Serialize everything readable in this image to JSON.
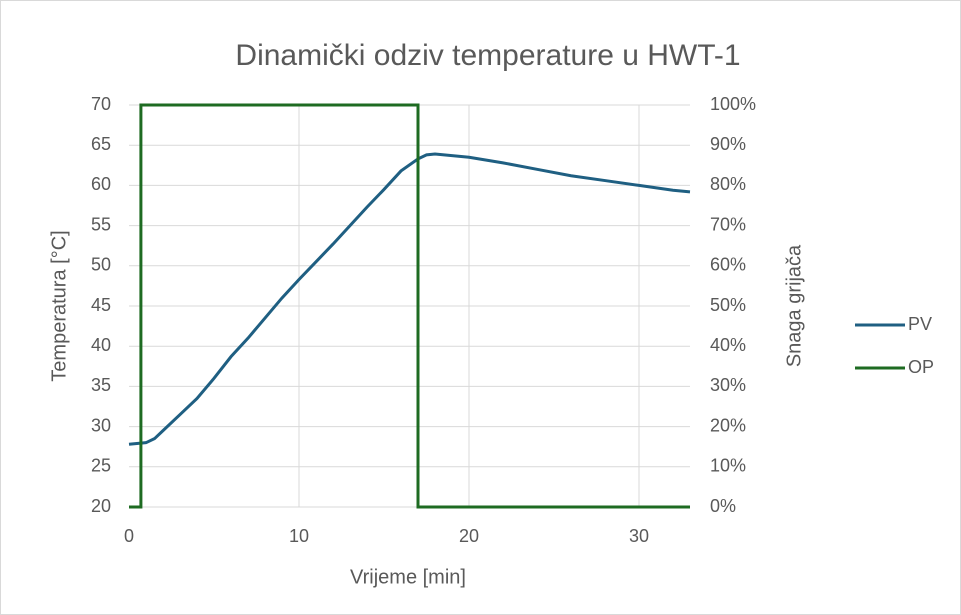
{
  "chart_data": {
    "type": "line",
    "title": "Dinamički odziv temperature u HWT-1",
    "xlabel": "Vrijeme [min]",
    "ylabel": "Temperatura [°C]",
    "y2label": "Snaga grijača",
    "xlim": [
      0,
      33
    ],
    "xticks": [
      0,
      10,
      20,
      30
    ],
    "ylim": [
      20,
      70
    ],
    "yticks": [
      20,
      25,
      30,
      35,
      40,
      45,
      50,
      55,
      60,
      65,
      70
    ],
    "y2lim": [
      0,
      100
    ],
    "y2ticks": [
      {
        "value": 0,
        "label": "0%"
      },
      {
        "value": 10,
        "label": "10%"
      },
      {
        "value": 20,
        "label": "20%"
      },
      {
        "value": 30,
        "label": "30%"
      },
      {
        "value": 40,
        "label": "40%"
      },
      {
        "value": 50,
        "label": "50%"
      },
      {
        "value": 60,
        "label": "60%"
      },
      {
        "value": 70,
        "label": "70%"
      },
      {
        "value": 80,
        "label": "80%"
      },
      {
        "value": 90,
        "label": "90%"
      },
      {
        "value": 100,
        "label": "100%"
      }
    ],
    "grid": true,
    "legend": "right",
    "series": [
      {
        "name": "PV",
        "color": "#1f5f82",
        "axis": "y",
        "x": [
          0,
          1,
          1.5,
          2,
          3,
          4,
          5,
          6,
          7,
          8,
          9,
          10,
          11,
          12,
          13,
          14,
          15,
          16,
          17,
          17.5,
          18,
          20,
          22,
          24,
          26,
          28,
          30,
          32,
          33
        ],
        "values": [
          27.8,
          28,
          28.5,
          29.5,
          31.5,
          33.5,
          36,
          38.7,
          41,
          43.5,
          46,
          48.3,
          50.5,
          52.7,
          55,
          57.3,
          59.5,
          61.8,
          63.3,
          63.8,
          63.9,
          63.5,
          62.8,
          62,
          61.2,
          60.6,
          60,
          59.4,
          59.2
        ]
      },
      {
        "name": "OP",
        "color": "#1e6b22",
        "axis": "y2",
        "x": [
          0,
          0.7,
          0.7,
          17,
          17,
          33
        ],
        "values": [
          0,
          0,
          100,
          100,
          0,
          0
        ]
      }
    ]
  }
}
